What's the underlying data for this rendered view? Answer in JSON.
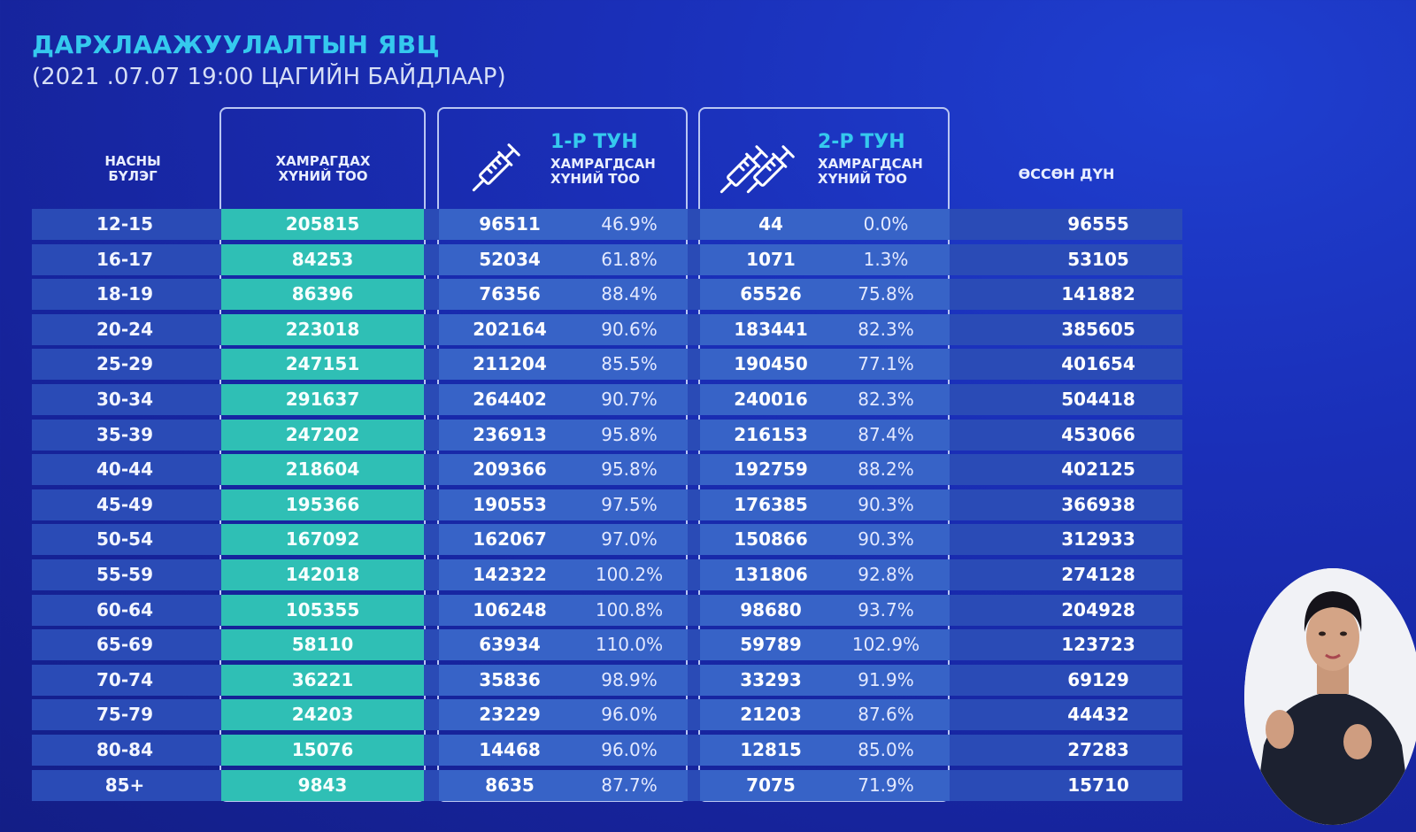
{
  "title": "ДАРХЛААЖУУЛАЛТЫН ЯВЦ",
  "subtitle": "(2021 .07.07   19:00 ЦАГИЙН БАЙДЛААР)",
  "headers": {
    "age_line1": "НАСНЫ",
    "age_line2": "БҮЛЭГ",
    "target_line1": "ХАМРАГДАХ",
    "target_line2": "ХҮНИЙ ТОО",
    "dose1_title": "1-Р ТУН",
    "dose1_line1": "ХАМРАГДСАН",
    "dose1_line2": "ХҮНИЙ ТОО",
    "dose2_title": "2-Р ТУН",
    "dose2_line1": "ХАМРАГДСАН",
    "dose2_line2": "ХҮНИЙ ТОО",
    "total": "ӨССӨН ДҮН"
  },
  "colors": {
    "title": "#35c9ee",
    "target_column": "#2fbfb5",
    "row_bar": "#2a4bb6",
    "dose_cells": "#3763c7",
    "background": "#16239a"
  },
  "icons": [
    "syringe-icon",
    "double-syringe-icon"
  ],
  "rows": [
    {
      "age": "12-15",
      "target": "205815",
      "d1": "96511",
      "d1p": "46.9%",
      "d2": "44",
      "d2p": "0.0%",
      "total": "96555"
    },
    {
      "age": "16-17",
      "target": "84253",
      "d1": "52034",
      "d1p": "61.8%",
      "d2": "1071",
      "d2p": "1.3%",
      "total": "53105"
    },
    {
      "age": "18-19",
      "target": "86396",
      "d1": "76356",
      "d1p": "88.4%",
      "d2": "65526",
      "d2p": "75.8%",
      "total": "141882"
    },
    {
      "age": "20-24",
      "target": "223018",
      "d1": "202164",
      "d1p": "90.6%",
      "d2": "183441",
      "d2p": "82.3%",
      "total": "385605"
    },
    {
      "age": "25-29",
      "target": "247151",
      "d1": "211204",
      "d1p": "85.5%",
      "d2": "190450",
      "d2p": "77.1%",
      "total": "401654"
    },
    {
      "age": "30-34",
      "target": "291637",
      "d1": "264402",
      "d1p": "90.7%",
      "d2": "240016",
      "d2p": "82.3%",
      "total": "504418"
    },
    {
      "age": "35-39",
      "target": "247202",
      "d1": "236913",
      "d1p": "95.8%",
      "d2": "216153",
      "d2p": "87.4%",
      "total": "453066"
    },
    {
      "age": "40-44",
      "target": "218604",
      "d1": "209366",
      "d1p": "95.8%",
      "d2": "192759",
      "d2p": "88.2%",
      "total": "402125"
    },
    {
      "age": "45-49",
      "target": "195366",
      "d1": "190553",
      "d1p": "97.5%",
      "d2": "176385",
      "d2p": "90.3%",
      "total": "366938"
    },
    {
      "age": "50-54",
      "target": "167092",
      "d1": "162067",
      "d1p": "97.0%",
      "d2": "150866",
      "d2p": "90.3%",
      "total": "312933"
    },
    {
      "age": "55-59",
      "target": "142018",
      "d1": "142322",
      "d1p": "100.2%",
      "d2": "131806",
      "d2p": "92.8%",
      "total": "274128"
    },
    {
      "age": "60-64",
      "target": "105355",
      "d1": "106248",
      "d1p": "100.8%",
      "d2": "98680",
      "d2p": "93.7%",
      "total": "204928"
    },
    {
      "age": "65-69",
      "target": "58110",
      "d1": "63934",
      "d1p": "110.0%",
      "d2": "59789",
      "d2p": "102.9%",
      "total": "123723"
    },
    {
      "age": "70-74",
      "target": "36221",
      "d1": "35836",
      "d1p": "98.9%",
      "d2": "33293",
      "d2p": "91.9%",
      "total": "69129"
    },
    {
      "age": "75-79",
      "target": "24203",
      "d1": "23229",
      "d1p": "96.0%",
      "d2": "21203",
      "d2p": "87.6%",
      "total": "44432"
    },
    {
      "age": "80-84",
      "target": "15076",
      "d1": "14468",
      "d1p": "96.0%",
      "d2": "12815",
      "d2p": "85.0%",
      "total": "27283"
    },
    {
      "age": "85+",
      "target": "9843",
      "d1": "8635",
      "d1p": "87.7%",
      "d2": "7075",
      "d2p": "71.9%",
      "total": "15710"
    }
  ]
}
